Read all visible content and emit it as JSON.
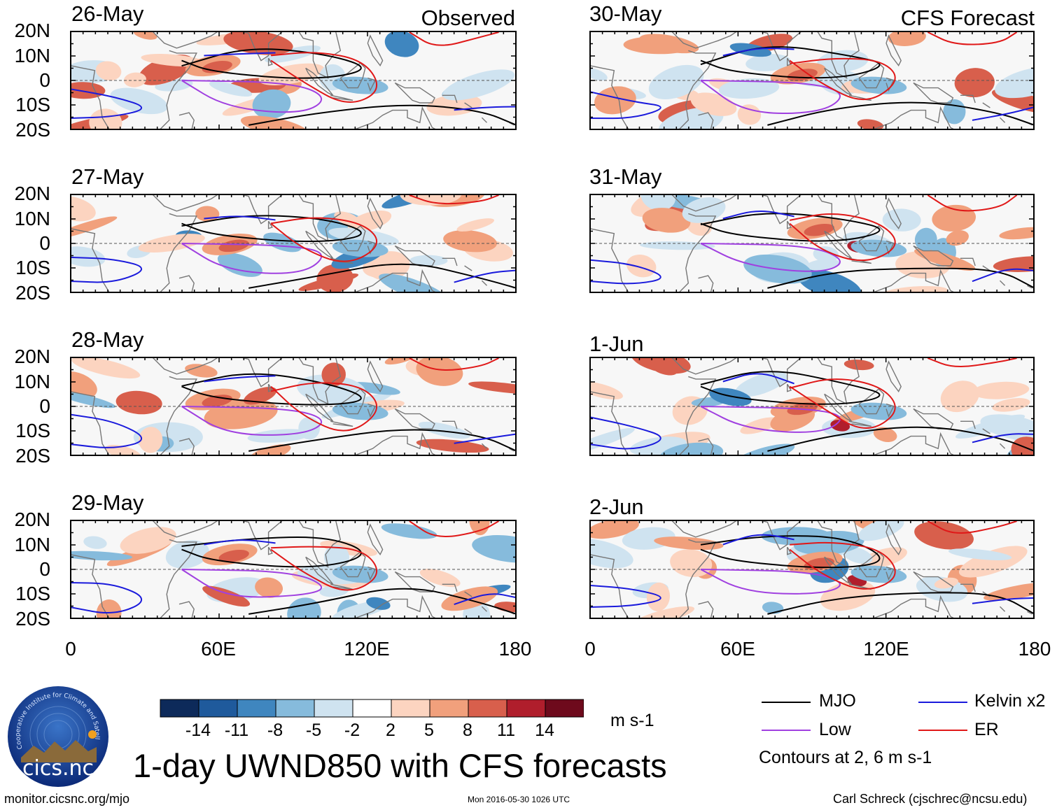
{
  "header": {
    "observed_label": "Observed",
    "forecast_label": "CFS Forecast"
  },
  "panels_observed": [
    {
      "date": "26-May"
    },
    {
      "date": "27-May"
    },
    {
      "date": "28-May"
    },
    {
      "date": "29-May"
    }
  ],
  "panels_forecast": [
    {
      "date": "30-May"
    },
    {
      "date": "31-May"
    },
    {
      "date": "1-Jun"
    },
    {
      "date": "2-Jun"
    }
  ],
  "axes": {
    "lat_ticks": [
      "20N",
      "10N",
      "0",
      "10S",
      "20S"
    ],
    "lon_ticks": [
      "0",
      "60E",
      "120E",
      "180"
    ]
  },
  "colorbar": {
    "labels": [
      "-14",
      "-11",
      "-8",
      "-5",
      "-2",
      "2",
      "5",
      "8",
      "11",
      "14"
    ],
    "colors": [
      "#0d2a5a",
      "#1f5a9c",
      "#3f86bf",
      "#86bbdc",
      "#cfe3f0",
      "#ffffff",
      "#fcd4c0",
      "#f1a07c",
      "#d85f4c",
      "#b01e2c",
      "#6e0a1c"
    ],
    "units": "m s-1"
  },
  "legend": {
    "items": [
      {
        "label": "MJO",
        "color": "#000000"
      },
      {
        "label": "Kelvin x2",
        "color": "#1a1adc"
      },
      {
        "label": "Low",
        "color": "#a040e0"
      },
      {
        "label": "ER",
        "color": "#e01818"
      }
    ],
    "contour_note": "Contours at 2, 6 m s-1"
  },
  "logo": {
    "text": "cics.nc",
    "ring_text": "Cooperative Institute for Climate and Satellites"
  },
  "title": "1-day UWND850 with CFS forecasts",
  "footer": {
    "url": "monitor.cicsnc.org/mjo",
    "timestamp": "Mon 2016-05-30 1026 UTC",
    "author": "Carl Schreck (cjschrec@ncsu.edu)"
  }
}
